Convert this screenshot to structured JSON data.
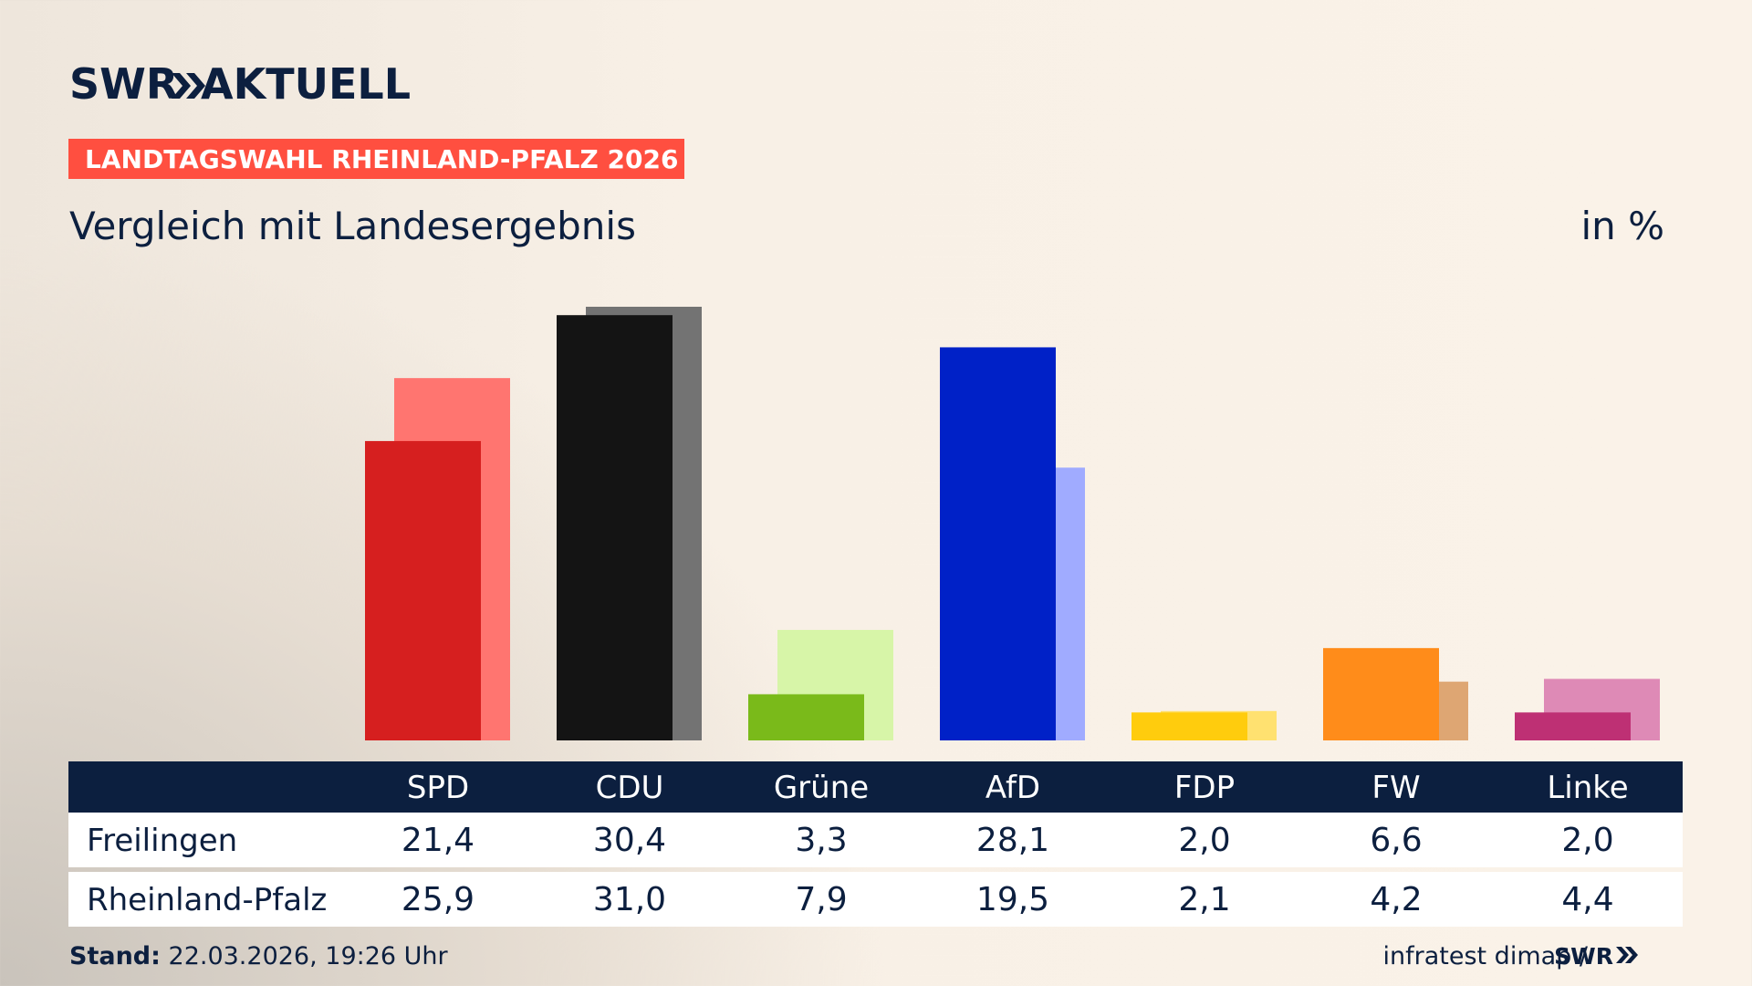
{
  "logo": {
    "brand": "SWR",
    "section": "AKTUELL"
  },
  "tag": "LANDTAGSWAHL RHEINLAND-PFALZ 2026",
  "chart_data": {
    "type": "bar",
    "title": "Vergleich mit Landesergebnis",
    "unit_label": "in %",
    "categories": [
      "SPD",
      "CDU",
      "Grüne",
      "AfD",
      "FDP",
      "FW",
      "Linke"
    ],
    "series": [
      {
        "name": "Freilingen",
        "values": [
          21.4,
          30.4,
          3.3,
          28.1,
          2.0,
          6.6,
          2.0
        ],
        "value_labels": [
          "21,4",
          "30,4",
          "3,3",
          "28,1",
          "2,0",
          "6,6",
          "2,0"
        ],
        "colors": [
          "#d61f1f",
          "#141414",
          "#7aba1a",
          "#0021c7",
          "#ffcc0d",
          "#ff8c1a",
          "#be3074"
        ]
      },
      {
        "name": "Rheinland-Pfalz",
        "values": [
          25.9,
          31.0,
          7.9,
          19.5,
          2.1,
          4.2,
          4.4
        ],
        "value_labels": [
          "25,9",
          "31,0",
          "7,9",
          "19,5",
          "2,1",
          "4,2",
          "4,4"
        ],
        "colors": [
          "#ff7570",
          "#737373",
          "#d7f5a8",
          "#a0abff",
          "#ffe170",
          "#dea673",
          "#de8ab6"
        ]
      }
    ]
  },
  "footer": {
    "label": "Stand:",
    "date": "22.03.2026, 19:26 Uhr",
    "source": "infratest dimap /",
    "brand": "SWR"
  }
}
